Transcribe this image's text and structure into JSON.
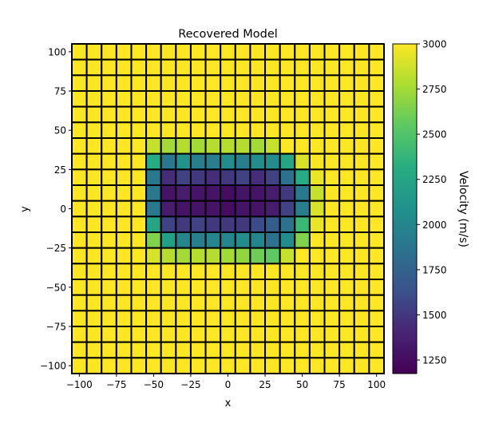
{
  "chart_data": {
    "type": "heatmap",
    "title": "Recovered Model",
    "xlabel": "x",
    "ylabel": "y",
    "xlim": [
      -105,
      105
    ],
    "ylim": [
      -105,
      105
    ],
    "x_ticks": [
      -100,
      -75,
      -50,
      -25,
      0,
      25,
      50,
      75,
      100
    ],
    "y_ticks": [
      -100,
      -75,
      -50,
      -25,
      0,
      25,
      50,
      75,
      100
    ],
    "x_tick_labels": [
      "−100",
      "−75",
      "−50",
      "−25",
      "0",
      "25",
      "50",
      "75",
      "100"
    ],
    "y_tick_labels": [
      "−100",
      "−75",
      "−50",
      "−25",
      "0",
      "25",
      "50",
      "75",
      "100"
    ],
    "cell_size": 10,
    "x_centers": [
      -100,
      -90,
      -80,
      -70,
      -60,
      -50,
      -40,
      -30,
      -20,
      -10,
      0,
      10,
      20,
      30,
      40,
      50,
      60,
      70,
      80,
      90,
      100
    ],
    "y_centers": [
      100,
      90,
      80,
      70,
      60,
      50,
      40,
      30,
      20,
      10,
      0,
      -10,
      -20,
      -30,
      -40,
      -50,
      -60,
      -70,
      -80,
      -90,
      -100
    ],
    "values": [
      [
        3000,
        3000,
        3000,
        3000,
        3000,
        3000,
        3000,
        3000,
        3000,
        3000,
        3000,
        3000,
        3000,
        3000,
        3000,
        3000,
        3000,
        3000,
        3000,
        3000,
        3000
      ],
      [
        3000,
        3000,
        3000,
        3000,
        3000,
        3000,
        3000,
        3000,
        3000,
        3000,
        3000,
        3000,
        3000,
        3000,
        3000,
        3000,
        3000,
        3000,
        3000,
        3000,
        3000
      ],
      [
        3000,
        3000,
        3000,
        3000,
        3000,
        3000,
        3000,
        3000,
        3000,
        3000,
        3000,
        3000,
        3000,
        3000,
        3000,
        3000,
        3000,
        3000,
        3000,
        3000,
        3000
      ],
      [
        3000,
        3000,
        3000,
        3000,
        3000,
        3000,
        3000,
        3000,
        3000,
        3000,
        3000,
        3000,
        3000,
        3000,
        3000,
        3000,
        3000,
        3000,
        3000,
        3000,
        3000
      ],
      [
        3000,
        3000,
        3000,
        3000,
        3000,
        3000,
        3000,
        3000,
        3000,
        3000,
        3000,
        3000,
        3000,
        3000,
        3000,
        3000,
        3000,
        3000,
        3000,
        3000,
        3000
      ],
      [
        3000,
        3000,
        3000,
        3000,
        3000,
        3000,
        3000,
        3000,
        3000,
        3000,
        3000,
        3000,
        3000,
        3000,
        3000,
        3000,
        3000,
        3000,
        3000,
        3000,
        3000
      ],
      [
        3000,
        3000,
        3000,
        3000,
        3000,
        2850,
        2750,
        2800,
        2750,
        2800,
        2800,
        2800,
        2750,
        2850,
        3000,
        3000,
        3000,
        3000,
        3000,
        3000,
        3000
      ],
      [
        3000,
        3000,
        3000,
        3000,
        3000,
        2300,
        1900,
        2100,
        1950,
        1950,
        2050,
        1950,
        2050,
        2050,
        2250,
        2900,
        3000,
        3000,
        3000,
        3000,
        3000
      ],
      [
        3000,
        3000,
        3000,
        3000,
        3000,
        1900,
        1450,
        1550,
        1500,
        1450,
        1500,
        1550,
        1450,
        1550,
        1850,
        2300,
        2950,
        3000,
        3000,
        3000,
        3000
      ],
      [
        3000,
        3000,
        3000,
        3000,
        3000,
        1900,
        1300,
        1350,
        1300,
        1300,
        1250,
        1300,
        1300,
        1350,
        1500,
        1900,
        2850,
        3000,
        3000,
        3000,
        3000
      ],
      [
        3000,
        3000,
        3000,
        3000,
        3000,
        1900,
        1350,
        1300,
        1300,
        1300,
        1250,
        1300,
        1300,
        1350,
        1550,
        1950,
        2900,
        3000,
        3000,
        3000,
        3000
      ],
      [
        3000,
        3000,
        3000,
        3000,
        3000,
        2250,
        1550,
        1500,
        1550,
        1500,
        1500,
        1500,
        1600,
        1700,
        1850,
        2400,
        2950,
        3000,
        3000,
        3000,
        3000
      ],
      [
        3000,
        3000,
        3000,
        3000,
        3000,
        2650,
        2200,
        2000,
        1950,
        2000,
        2000,
        2050,
        2000,
        1850,
        2050,
        2650,
        3000,
        3000,
        3000,
        3000,
        3000
      ],
      [
        3000,
        3000,
        3000,
        3000,
        3000,
        2900,
        2800,
        2750,
        2800,
        2800,
        2750,
        2700,
        2600,
        2550,
        2850,
        3000,
        3000,
        3000,
        3000,
        3000,
        3000
      ],
      [
        3000,
        3000,
        3000,
        3000,
        3000,
        3000,
        3000,
        3000,
        3000,
        3000,
        3000,
        3000,
        3000,
        3000,
        3000,
        3000,
        3000,
        3000,
        3000,
        3000,
        3000
      ],
      [
        3000,
        3000,
        3000,
        3000,
        3000,
        3000,
        3000,
        3000,
        3000,
        3000,
        3000,
        3000,
        3000,
        3000,
        3000,
        3000,
        3000,
        3000,
        3000,
        3000,
        3000
      ],
      [
        3000,
        3000,
        3000,
        3000,
        3000,
        3000,
        3000,
        3000,
        3000,
        3000,
        3000,
        3000,
        3000,
        3000,
        3000,
        3000,
        3000,
        3000,
        3000,
        3000,
        3000
      ],
      [
        3000,
        3000,
        3000,
        3000,
        3000,
        3000,
        3000,
        3000,
        3000,
        3000,
        3000,
        3000,
        3000,
        3000,
        3000,
        3000,
        3000,
        3000,
        3000,
        3000,
        3000
      ],
      [
        3000,
        3000,
        3000,
        3000,
        3000,
        3000,
        3000,
        3000,
        3000,
        3000,
        3000,
        3000,
        3000,
        3000,
        3000,
        3000,
        3000,
        3000,
        3000,
        3000,
        3000
      ],
      [
        3000,
        3000,
        3000,
        3000,
        3000,
        3000,
        3000,
        3000,
        3000,
        3000,
        3000,
        3000,
        3000,
        3000,
        3000,
        3000,
        3000,
        3000,
        3000,
        3000,
        3000
      ],
      [
        3000,
        3000,
        3000,
        3000,
        3000,
        3000,
        3000,
        3000,
        3000,
        3000,
        3000,
        3000,
        3000,
        3000,
        3000,
        3000,
        3000,
        3000,
        3000,
        3000,
        3000
      ]
    ],
    "colorbar": {
      "label": "Velocity (m/s)",
      "range": [
        1175,
        3000
      ],
      "ticks": [
        1250,
        1500,
        1750,
        2000,
        2250,
        2500,
        2750,
        3000
      ],
      "tick_labels": [
        "1250",
        "1500",
        "1750",
        "2000",
        "2250",
        "2500",
        "2750",
        "3000"
      ],
      "colormap": "viridis"
    },
    "grid": false,
    "cell_edge_color": "#000000"
  }
}
